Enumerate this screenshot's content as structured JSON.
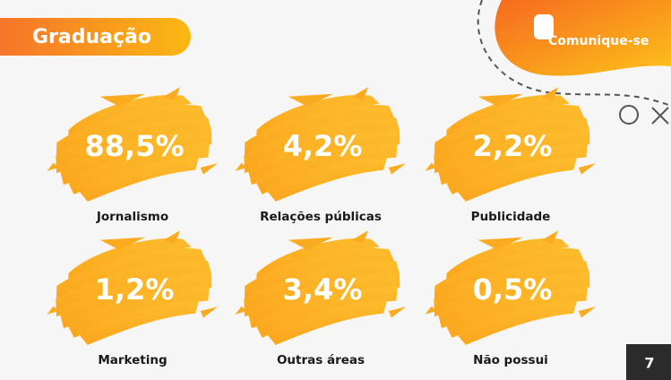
{
  "header": {
    "title": "Graduação"
  },
  "logo": {
    "text": "Comunique-se"
  },
  "items": [
    {
      "value": "88,5%",
      "label": "Jornalismo"
    },
    {
      "value": "4,2%",
      "label": "Relações públicas"
    },
    {
      "value": "2,2%",
      "label": "Publicidade"
    },
    {
      "value": "1,2%",
      "label": "Marketing"
    },
    {
      "value": "3,4%",
      "label": "Outras áreas"
    },
    {
      "value": "0,5%",
      "label": "Não possui"
    }
  ],
  "footer": {
    "page": "7"
  }
}
